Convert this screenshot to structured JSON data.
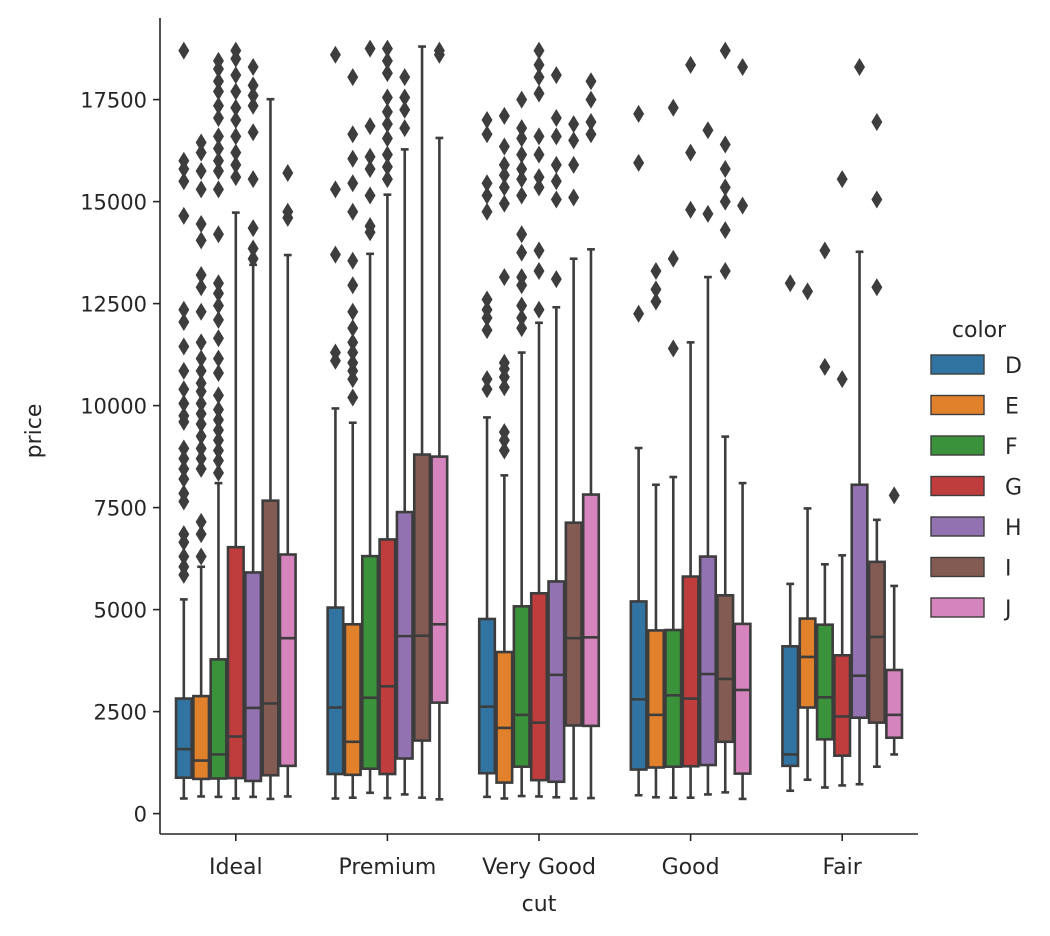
{
  "chart_data": {
    "type": "box",
    "xlabel": "cut",
    "ylabel": "price",
    "categories": [
      "Ideal",
      "Premium",
      "Very Good",
      "Good",
      "Fair"
    ],
    "ylim": [
      -500,
      19500
    ],
    "yticks": [
      0,
      2500,
      5000,
      7500,
      10000,
      12500,
      15000,
      17500
    ],
    "grid": false,
    "legend": {
      "title": "color",
      "placement": "right"
    },
    "outlier_color": "#3d3d3d",
    "series": [
      {
        "name": "D",
        "color": "#3274a1",
        "boxes": [
          {
            "whislo": 370,
            "q1": 880,
            "med": 1580,
            "q3": 2820,
            "whishi": 5250,
            "fliers": [
              5850,
              6050,
              6300,
              6650,
              6850,
              7650,
              7850,
              8200,
              8450,
              8700,
              8950,
              9600,
              9750,
              10050,
              10400,
              10850,
              11450,
              12050,
              12350,
              14650,
              15500,
              15800,
              16000,
              18700
            ]
          },
          {
            "whislo": 370,
            "q1": 970,
            "med": 2600,
            "q3": 5050,
            "whishi": 9930,
            "fliers": [
              11100,
              11300,
              13700,
              15300,
              18600
            ]
          },
          {
            "whislo": 410,
            "q1": 990,
            "med": 2620,
            "q3": 4770,
            "whishi": 9710,
            "fliers": [
              10400,
              10650,
              11850,
              12150,
              12350,
              12600,
              14750,
              15150,
              15450,
              16650,
              17000
            ]
          },
          {
            "whislo": 450,
            "q1": 1080,
            "med": 2800,
            "q3": 5200,
            "whishi": 8960,
            "fliers": [
              12250,
              15950,
              17150
            ]
          },
          {
            "whislo": 560,
            "q1": 1170,
            "med": 1450,
            "q3": 4100,
            "whishi": 5630,
            "fliers": [
              13000
            ]
          }
        ]
      },
      {
        "name": "E",
        "color": "#e1812c",
        "boxes": [
          {
            "whislo": 420,
            "q1": 850,
            "med": 1300,
            "q3": 2880,
            "whishi": 6050,
            "fliers": [
              6300,
              6850,
              7150,
              8450,
              8700,
              8950,
              9250,
              9550,
              9800,
              10050,
              10350,
              10550,
              10850,
              11150,
              11550,
              12300,
              12900,
              13200,
              14050,
              14450,
              15300,
              15750,
              16200,
              16450
            ]
          },
          {
            "whislo": 390,
            "q1": 950,
            "med": 1760,
            "q3": 4640,
            "whishi": 9580,
            "fliers": [
              10200,
              10650,
              10850,
              11050,
              11300,
              11550,
              11900,
              12300,
              12950,
              13550,
              14750,
              15450,
              16050,
              16650,
              18050
            ]
          },
          {
            "whislo": 370,
            "q1": 760,
            "med": 2100,
            "q3": 3960,
            "whishi": 8290,
            "fliers": [
              8900,
              9150,
              9350,
              10450,
              10700,
              10900,
              11050,
              13150,
              14950,
              15350,
              15650,
              15900,
              16350,
              17100
            ]
          },
          {
            "whislo": 400,
            "q1": 1130,
            "med": 2420,
            "q3": 4490,
            "whishi": 8060,
            "fliers": [
              12550,
              12850,
              13300
            ]
          },
          {
            "whislo": 830,
            "q1": 2600,
            "med": 3840,
            "q3": 4780,
            "whishi": 7480,
            "fliers": [
              12800
            ]
          }
        ]
      },
      {
        "name": "F",
        "color": "#3a923a",
        "boxes": [
          {
            "whislo": 410,
            "q1": 860,
            "med": 1450,
            "q3": 3780,
            "whishi": 8100,
            "fliers": [
              8350,
              8650,
              8900,
              9150,
              9400,
              9650,
              9900,
              10250,
              10800,
              11150,
              11650,
              12100,
              12450,
              12750,
              13000,
              14200,
              15300,
              15750,
              16000,
              16300,
              16600,
              17050,
              17350,
              17700,
              17950,
              18250,
              18450
            ]
          },
          {
            "whislo": 510,
            "q1": 1100,
            "med": 2840,
            "q3": 6310,
            "whishi": 13720,
            "fliers": [
              14250,
              14400,
              15150,
              15800,
              16100,
              16850,
              18750
            ]
          },
          {
            "whislo": 430,
            "q1": 1150,
            "med": 2420,
            "q3": 5080,
            "whishi": 11300,
            "fliers": [
              11900,
              12150,
              12450,
              12950,
              13150,
              13750,
              14200,
              15150,
              15550,
              15800,
              16150,
              16550,
              16800,
              17500
            ]
          },
          {
            "whislo": 390,
            "q1": 1150,
            "med": 2900,
            "q3": 4500,
            "whishi": 8250,
            "fliers": [
              11400,
              13600,
              17300
            ]
          },
          {
            "whislo": 640,
            "q1": 1820,
            "med": 2850,
            "q3": 4630,
            "whishi": 6110,
            "fliers": [
              10950,
              13800
            ]
          }
        ]
      },
      {
        "name": "G",
        "color": "#c03d3e",
        "boxes": [
          {
            "whislo": 370,
            "q1": 870,
            "med": 1890,
            "q3": 6530,
            "whishi": 14730,
            "fliers": [
              15600,
              15900,
              16200,
              16600,
              17000,
              17300,
              17700,
              18100,
              18500,
              18700
            ]
          },
          {
            "whislo": 380,
            "q1": 970,
            "med": 3120,
            "q3": 6720,
            "whishi": 15170,
            "fliers": [
              15550,
              15850,
              16150,
              16550,
              16900,
              17200,
              17550,
              18150,
              18450,
              18750
            ]
          },
          {
            "whislo": 420,
            "q1": 820,
            "med": 2230,
            "q3": 5400,
            "whishi": 12030,
            "fliers": [
              12350,
              13300,
              13800,
              15350,
              15600,
              16150,
              16600,
              17650,
              18050,
              18350,
              18700
            ]
          },
          {
            "whislo": 390,
            "q1": 1160,
            "med": 2820,
            "q3": 5810,
            "whishi": 11550,
            "fliers": [
              14800,
              16200,
              18350
            ]
          },
          {
            "whislo": 690,
            "q1": 1420,
            "med": 2380,
            "q3": 3880,
            "whishi": 6330,
            "fliers": [
              10650,
              15550
            ]
          }
        ]
      },
      {
        "name": "H",
        "color": "#9372b2",
        "boxes": [
          {
            "whislo": 410,
            "q1": 800,
            "med": 2590,
            "q3": 5910,
            "whishi": 13450,
            "fliers": [
              13600,
              13850,
              14350,
              15550,
              16700,
              17350,
              17600,
              17850,
              18300
            ]
          },
          {
            "whislo": 470,
            "q1": 1350,
            "med": 4350,
            "q3": 7390,
            "whishi": 16280,
            "fliers": [
              16800,
              17250,
              17550,
              18050
            ]
          },
          {
            "whislo": 400,
            "q1": 780,
            "med": 3400,
            "q3": 5690,
            "whishi": 12410,
            "fliers": [
              13100,
              15050,
              15500,
              15900,
              16600,
              17050,
              18100
            ]
          },
          {
            "whislo": 470,
            "q1": 1190,
            "med": 3420,
            "q3": 6300,
            "whishi": 13150,
            "fliers": [
              14700,
              16750
            ]
          },
          {
            "whislo": 720,
            "q1": 2350,
            "med": 3380,
            "q3": 8060,
            "whishi": 13770,
            "fliers": [
              18300
            ]
          }
        ]
      },
      {
        "name": "I",
        "color": "#845b53",
        "boxes": [
          {
            "whislo": 360,
            "q1": 940,
            "med": 2700,
            "q3": 7670,
            "whishi": 17510,
            "fliers": []
          },
          {
            "whislo": 390,
            "q1": 1790,
            "med": 4360,
            "q3": 8800,
            "whishi": 18800,
            "fliers": []
          },
          {
            "whislo": 370,
            "q1": 2160,
            "med": 4300,
            "q3": 7130,
            "whishi": 13600,
            "fliers": [
              15100,
              15900,
              16500,
              16900
            ]
          },
          {
            "whislo": 520,
            "q1": 1760,
            "med": 3300,
            "q3": 5350,
            "whishi": 9240,
            "fliers": [
              13300,
              14300,
              15000,
              15350,
              15800,
              16400,
              18700
            ]
          },
          {
            "whislo": 1150,
            "q1": 2230,
            "med": 4330,
            "q3": 6170,
            "whishi": 7200,
            "fliers": [
              12900,
              15050,
              16950
            ]
          }
        ]
      },
      {
        "name": "J",
        "color": "#d684bd",
        "boxes": [
          {
            "whislo": 420,
            "q1": 1170,
            "med": 4300,
            "q3": 6350,
            "whishi": 13690,
            "fliers": [
              14600,
              14750,
              15700
            ]
          },
          {
            "whislo": 350,
            "q1": 2720,
            "med": 4640,
            "q3": 8750,
            "whishi": 16560,
            "fliers": [
              18600,
              18700
            ]
          },
          {
            "whislo": 380,
            "q1": 2150,
            "med": 4320,
            "q3": 7820,
            "whishi": 13830,
            "fliers": [
              16650,
              16950,
              17500,
              17950
            ]
          },
          {
            "whislo": 360,
            "q1": 980,
            "med": 3030,
            "q3": 4650,
            "whishi": 8100,
            "fliers": [
              14900,
              18300
            ]
          },
          {
            "whislo": 1450,
            "q1": 1860,
            "med": 2420,
            "q3": 3520,
            "whishi": 5580,
            "fliers": [
              7800
            ]
          }
        ]
      }
    ]
  }
}
